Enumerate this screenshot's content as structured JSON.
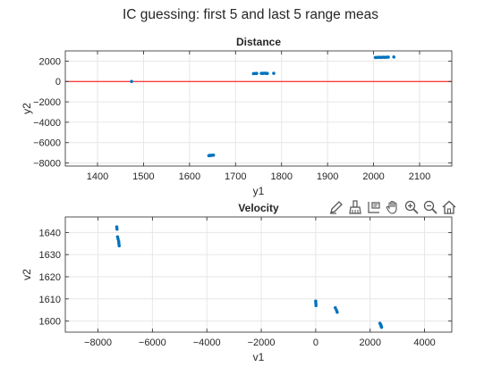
{
  "figure": {
    "title": "IC guessing: first 5 and last 5 range meas"
  },
  "toolbar": {
    "icons": [
      "edit-icon",
      "brush-icon",
      "data-tips-icon",
      "pan-hand-icon",
      "zoom-in-icon",
      "zoom-out-icon",
      "home-icon"
    ]
  },
  "colors": {
    "marker": "#0072BD",
    "reference_line": "#FF0000",
    "axis": "#262626",
    "grid": "#E6E6E6"
  },
  "chart_data": [
    {
      "type": "scatter",
      "title": "Distance",
      "xlabel": "y1",
      "ylabel": "y2",
      "xlim": [
        1330,
        2170
      ],
      "ylim": [
        -8300,
        3000
      ],
      "xticks": [
        1400,
        1500,
        1600,
        1700,
        1800,
        1900,
        2000,
        2100
      ],
      "yticks": [
        -8000,
        -6000,
        -4000,
        -2000,
        0,
        2000
      ],
      "grid": true,
      "reference_line": {
        "orientation": "horizontal",
        "y": 0
      },
      "points": [
        [
          1474,
          0
        ],
        [
          1642,
          -7280
        ],
        [
          1644,
          -7250
        ],
        [
          1646,
          -7260
        ],
        [
          1649,
          -7240
        ],
        [
          1652,
          -7230
        ],
        [
          1739,
          770
        ],
        [
          1742,
          780
        ],
        [
          1746,
          790
        ],
        [
          1756,
          800
        ],
        [
          1759,
          790
        ],
        [
          1762,
          810
        ],
        [
          1766,
          800
        ],
        [
          1769,
          790
        ],
        [
          1783,
          800
        ],
        [
          2004,
          2350
        ],
        [
          2008,
          2360
        ],
        [
          2012,
          2370
        ],
        [
          2016,
          2360
        ],
        [
          2020,
          2380
        ],
        [
          2024,
          2370
        ],
        [
          2028,
          2380
        ],
        [
          2032,
          2390
        ],
        [
          2044,
          2400
        ]
      ]
    },
    {
      "type": "scatter",
      "title": "Velocity",
      "xlabel": "v1",
      "ylabel": "v2",
      "xlim": [
        -9200,
        5000
      ],
      "ylim": [
        1595,
        1647
      ],
      "xticks": [
        -8000,
        -6000,
        -4000,
        -2000,
        0,
        2000,
        4000
      ],
      "yticks": [
        1600,
        1610,
        1620,
        1630,
        1640
      ],
      "grid": true,
      "points": [
        [
          -7310,
          1642.5
        ],
        [
          -7300,
          1641.5
        ],
        [
          -7280,
          1638.0
        ],
        [
          -7260,
          1637.0
        ],
        [
          -7240,
          1636.0
        ],
        [
          -7230,
          1635.0
        ],
        [
          -7220,
          1634.0
        ],
        [
          0,
          1609.0
        ],
        [
          5,
          1608.0
        ],
        [
          10,
          1607.0
        ],
        [
          720,
          1606.0
        ],
        [
          760,
          1605.0
        ],
        [
          790,
          1604.0
        ],
        [
          2360,
          1599.0
        ],
        [
          2380,
          1598.5
        ],
        [
          2400,
          1598.0
        ],
        [
          2410,
          1597.6
        ],
        [
          2420,
          1597.2
        ]
      ]
    }
  ]
}
